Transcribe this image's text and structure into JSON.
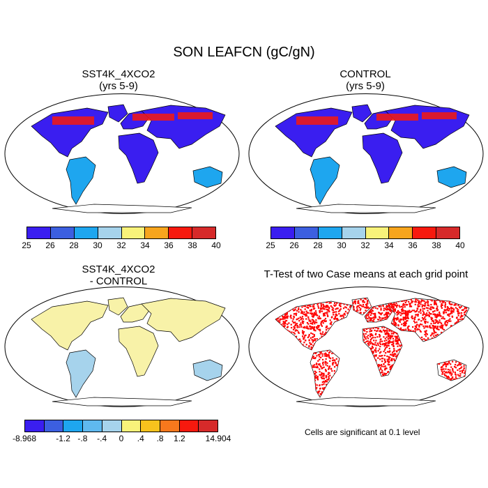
{
  "main_title": "SON LEAFCN (gC/gN)",
  "panels": [
    {
      "id": "sst4k",
      "title_line1": "SST4K_4XCO2",
      "title_line2": "(yrs 5-9)"
    },
    {
      "id": "control",
      "title_line1": "CONTROL",
      "title_line2": "(yrs 5-9)"
    },
    {
      "id": "diff",
      "title_line1": "SST4K_4XCO2",
      "title_line2": "- CONTROL"
    },
    {
      "id": "ttest",
      "title_line1": "T-Test of two Case means at each grid point",
      "title_line2": ""
    }
  ],
  "colorbar_abs": {
    "labels": [
      "25",
      "26",
      "28",
      "30",
      "32",
      "34",
      "36",
      "38",
      "40"
    ],
    "colors": [
      "#3a1ef0",
      "#3c5fe0",
      "#1ea6ef",
      "#a6d3ec",
      "#f8f27a",
      "#f7a51d",
      "#f7190e",
      "#d62a2a"
    ]
  },
  "colorbar_diff": {
    "labels": [
      "-8.968",
      "-1.2",
      "-.8",
      "-.4",
      "0",
      ".4",
      ".8",
      "1.2",
      "14.904"
    ],
    "colors": [
      "#3a1ef0",
      "#3c5fe0",
      "#1ea6ef",
      "#5fb9ef",
      "#a6d3ec",
      "#f8f27a",
      "#f7c21d",
      "#f7781d",
      "#f7190e",
      "#d62a2a"
    ]
  },
  "significance_note": "Cells are significant at 0.1 level",
  "map_colors": {
    "ocean": "#ffffff",
    "coast": "#000000",
    "abs_low": "#3a1ef0",
    "abs_mid": "#1ea6ef",
    "abs_high": "#f7190e",
    "diff_base": "#f8f2a8",
    "diff_light": "#a6d3ec",
    "signif": "#ff0000"
  }
}
